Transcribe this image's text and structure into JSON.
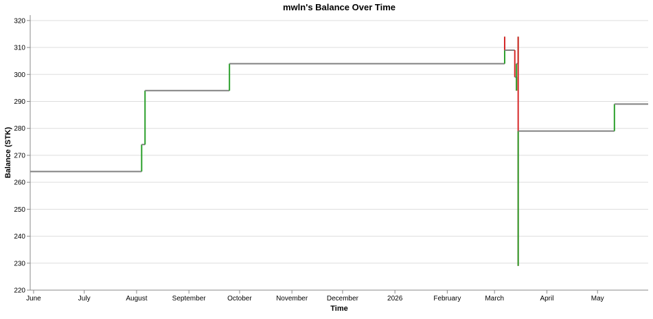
{
  "chart_data": {
    "type": "line",
    "title": "mwln's Balance Over Time",
    "xlabel": "Time",
    "ylabel": "Balance (STK)",
    "ylim": [
      220,
      322
    ],
    "xlim": [
      "2025-05-30",
      "2026-05-31"
    ],
    "grid": true,
    "colors": {
      "increase": "#2ca02c",
      "decrease": "#d62728",
      "flat": "#808080",
      "gridline": "#dddddd",
      "axis": "#888888"
    },
    "x_ticks": [
      {
        "date": "2025-06-01",
        "label": "June"
      },
      {
        "date": "2025-07-01",
        "label": "July"
      },
      {
        "date": "2025-08-01",
        "label": "August"
      },
      {
        "date": "2025-09-01",
        "label": "September"
      },
      {
        "date": "2025-10-01",
        "label": "October"
      },
      {
        "date": "2025-11-01",
        "label": "November"
      },
      {
        "date": "2025-12-01",
        "label": "December"
      },
      {
        "date": "2026-01-01",
        "label": "2026"
      },
      {
        "date": "2026-02-01",
        "label": "February"
      },
      {
        "date": "2026-03-01",
        "label": "March"
      },
      {
        "date": "2026-04-01",
        "label": "April"
      },
      {
        "date": "2026-05-01",
        "label": "May"
      }
    ],
    "y_ticks": [
      220,
      230,
      240,
      250,
      260,
      270,
      280,
      290,
      300,
      310,
      320
    ],
    "series": [
      {
        "points": [
          {
            "x": "2025-05-30",
            "y": 264
          },
          {
            "x": "2025-08-04",
            "y": 264
          },
          {
            "x": "2025-08-04",
            "y": 274
          },
          {
            "x": "2025-08-06",
            "y": 274
          },
          {
            "x": "2025-08-06",
            "y": 294
          },
          {
            "x": "2025-09-25",
            "y": 294
          },
          {
            "x": "2025-09-25",
            "y": 304
          },
          {
            "x": "2026-03-07",
            "y": 304
          },
          {
            "x": "2026-03-07",
            "y": 314
          },
          {
            "x": "2026-03-07",
            "y": 309
          },
          {
            "x": "2026-03-13",
            "y": 309
          },
          {
            "x": "2026-03-13",
            "y": 299
          },
          {
            "x": "2026-03-14",
            "y": 299
          },
          {
            "x": "2026-03-14",
            "y": 294
          },
          {
            "x": "2026-03-14",
            "y": 304
          },
          {
            "x": "2026-03-15",
            "y": 304
          },
          {
            "x": "2026-03-15",
            "y": 314
          },
          {
            "x": "2026-03-15",
            "y": 229
          },
          {
            "x": "2026-03-15",
            "y": 279
          },
          {
            "x": "2026-05-11",
            "y": 279
          },
          {
            "x": "2026-05-11",
            "y": 289
          },
          {
            "x": "2026-05-31",
            "y": 289
          }
        ]
      }
    ]
  }
}
